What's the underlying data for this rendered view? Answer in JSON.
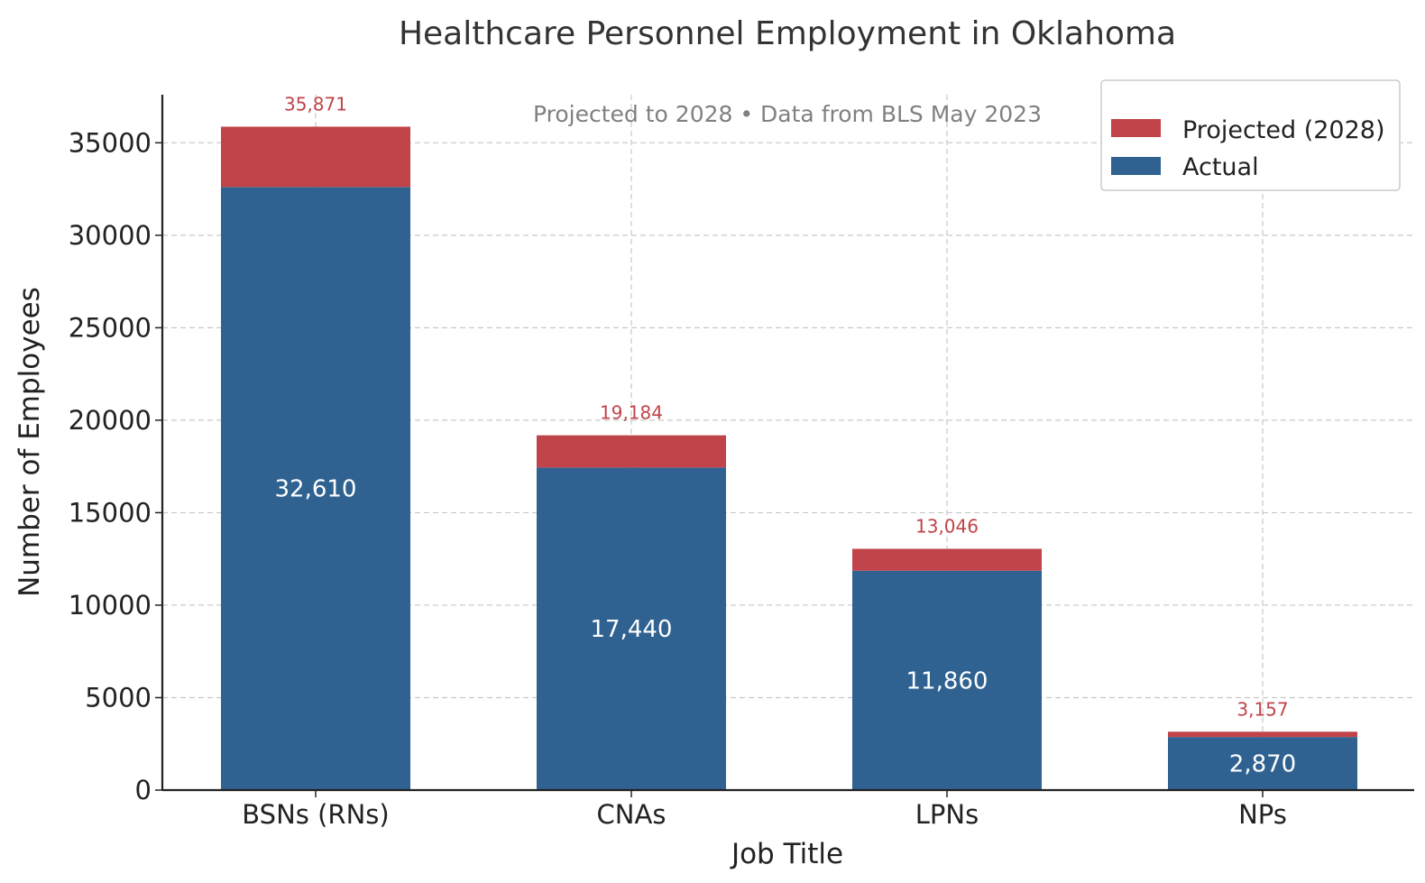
{
  "chart_data": {
    "type": "bar",
    "stacked": true,
    "title": "Healthcare Personnel Employment in Oklahoma",
    "subtitle": "Projected to 2028 • Data from BLS May 2023",
    "xlabel": "Job Title",
    "ylabel": "Number of Employees",
    "categories": [
      "BSNs (RNs)",
      "CNAs",
      "LPNs",
      "NPs"
    ],
    "series": [
      {
        "name": "Actual",
        "values": [
          32610,
          17440,
          11860,
          2870
        ],
        "color": "#306291"
      },
      {
        "name": "Projected (2028)",
        "values": [
          3261,
          1744,
          1186,
          287
        ],
        "color": "#c0444a"
      }
    ],
    "actual_labels": [
      "32,610",
      "17,440",
      "11,860",
      "2,870"
    ],
    "total_labels": [
      "35,871",
      "19,184",
      "13,046",
      "3,157"
    ],
    "ylim": [
      0,
      37600
    ],
    "yticks": [
      0,
      5000,
      10000,
      15000,
      20000,
      25000,
      30000,
      35000
    ],
    "grid": true,
    "legend_position": "top-right"
  }
}
